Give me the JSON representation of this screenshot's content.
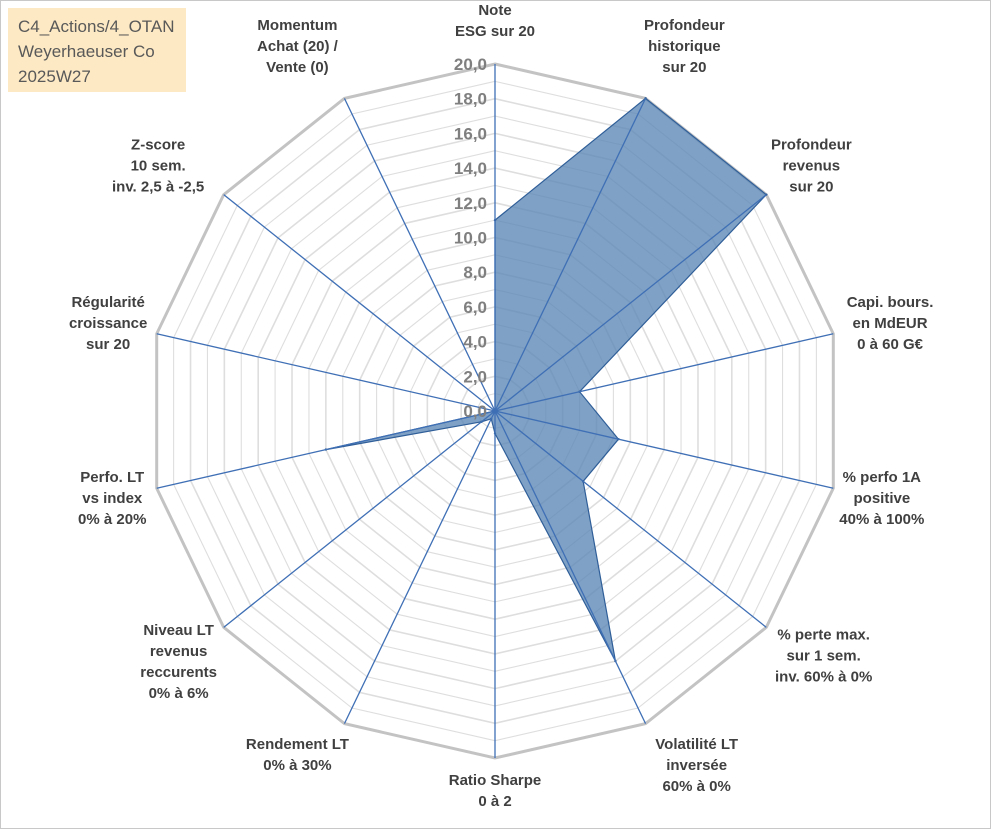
{
  "info_box": {
    "line1": "C4_Actions/4_OTAN",
    "line2": "Weyerhaeuser Co",
    "line3": "2025W27"
  },
  "chart_data": {
    "type": "radar",
    "title": "",
    "rmin": 0,
    "rmax": 20,
    "tick_step": 2,
    "tick_labels": [
      "0,0",
      "2,0",
      "4,0",
      "6,0",
      "8,0",
      "10,0",
      "12,0",
      "14,0",
      "16,0",
      "18,0",
      "20,0"
    ],
    "axes": [
      [
        "Note",
        "ESG sur 20"
      ],
      [
        "Profondeur",
        "historique",
        "sur 20"
      ],
      [
        "Profondeur",
        "revenus",
        "sur 20"
      ],
      [
        "Capi. bours.",
        "en MdEUR",
        "0 à 60 G€"
      ],
      [
        "% perfo 1A",
        "positive",
        "40% à 100%"
      ],
      [
        "% perte max.",
        "sur 1 sem.",
        "inv. 60% à 0%"
      ],
      [
        "Volatilité LT",
        "inversée",
        "60% à 0%"
      ],
      [
        "Ratio Sharpe",
        "0 à 2"
      ],
      [
        "Rendement LT",
        "0% à 30%"
      ],
      [
        "Niveau LT",
        "revenus",
        "reccurents",
        "0% à 6%"
      ],
      [
        "Perfo. LT",
        "vs index",
        "0% à 20%"
      ],
      [
        "Régularité",
        "croissance",
        "sur 20"
      ],
      [
        "Z-score",
        "10 sem.",
        "inv. 2,5 à -2,5"
      ],
      [
        "Momentum",
        "Achat (20) /",
        "Vente (0)"
      ]
    ],
    "series": [
      {
        "values": [
          11,
          20,
          20,
          5,
          7.3,
          6.5,
          16,
          1.3,
          0.5,
          1,
          10,
          0,
          0,
          0
        ]
      }
    ],
    "colors": {
      "fill": "#5b86b5",
      "stroke": "#2f5e98",
      "spokes": "#3f6fb5",
      "grid_outer": "#c3c3c3",
      "grid_inner": "#dedede"
    },
    "grid": true,
    "legend": "none"
  }
}
